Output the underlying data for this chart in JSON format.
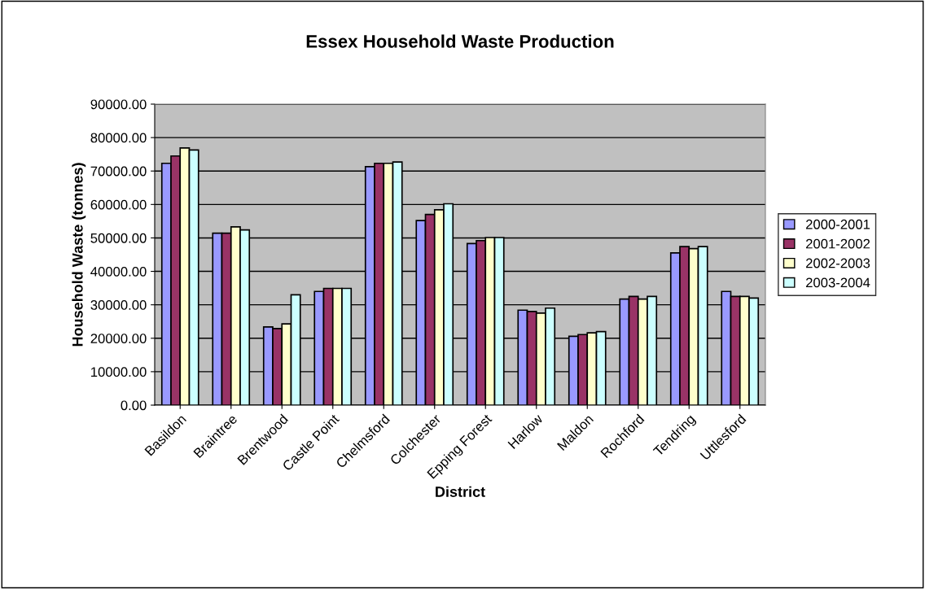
{
  "chart_data": {
    "type": "bar",
    "title": "Essex Household Waste Production",
    "xlabel": "District",
    "ylabel": "Household Waste (tonnes)",
    "categories": [
      "Basildon",
      "Braintree",
      "Brentwood",
      "Castle Point",
      "Chelmsford",
      "Colchester",
      "Epping Forest",
      "Harlow",
      "Maldon",
      "Rochford",
      "Tendring",
      "Uttlesford"
    ],
    "series": [
      {
        "name": "2000-2001",
        "color": "#9999ff",
        "values": [
          72300,
          51400,
          23400,
          34000,
          71300,
          55200,
          48300,
          28400,
          20600,
          31700,
          45500,
          34000
        ]
      },
      {
        "name": "2001-2002",
        "color": "#993366",
        "values": [
          74500,
          51400,
          22900,
          34900,
          72300,
          57000,
          49200,
          28000,
          21100,
          32500,
          47400,
          32500
        ]
      },
      {
        "name": "2002-2003",
        "color": "#ffffcc",
        "values": [
          76900,
          53300,
          24300,
          34900,
          72300,
          58400,
          50100,
          27500,
          21600,
          31700,
          46800,
          32500
        ]
      },
      {
        "name": "2003-2004",
        "color": "#ccffff",
        "values": [
          76300,
          52400,
          33000,
          34900,
          72700,
          60200,
          50100,
          29000,
          22000,
          32500,
          47400,
          32000
        ]
      }
    ],
    "ylim": [
      0,
      90000
    ],
    "yticks": [
      {
        "value": 0,
        "label": "0.00"
      },
      {
        "value": 10000,
        "label": "10000.00"
      },
      {
        "value": 20000,
        "label": "20000.00"
      },
      {
        "value": 30000,
        "label": "30000.00"
      },
      {
        "value": 40000,
        "label": "40000.00"
      },
      {
        "value": 50000,
        "label": "50000.00"
      },
      {
        "value": 60000,
        "label": "60000.00"
      },
      {
        "value": 70000,
        "label": "70000.00"
      },
      {
        "value": 80000,
        "label": "80000.00"
      },
      {
        "value": 90000,
        "label": "90000.00"
      }
    ],
    "grid": "y",
    "legend": "right"
  }
}
